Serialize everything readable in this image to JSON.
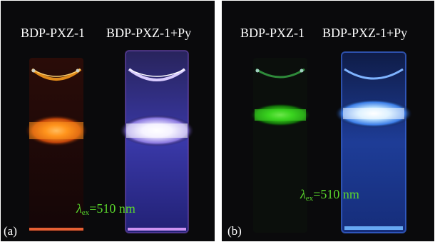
{
  "panels": [
    {
      "id": "a",
      "tag": "(a)",
      "sample_labels": [
        "BDP-PXZ-1",
        "BDP-PXZ-1+Py"
      ],
      "excitation": {
        "symbol": "λ",
        "subscript": "ex",
        "value": "=510 nm"
      },
      "emission_colors": {
        "left": "#ff8a1a",
        "right": "#f4f0ff"
      }
    },
    {
      "id": "b",
      "tag": "(b)",
      "sample_labels": [
        "BDP-PXZ-1",
        "BDP-PXZ-1+Py"
      ],
      "excitation": {
        "symbol": "λ",
        "subscript": "ex",
        "value": "=510 nm"
      },
      "emission_colors": {
        "left": "#39d31f",
        "right": "#6fb6ff"
      }
    }
  ]
}
